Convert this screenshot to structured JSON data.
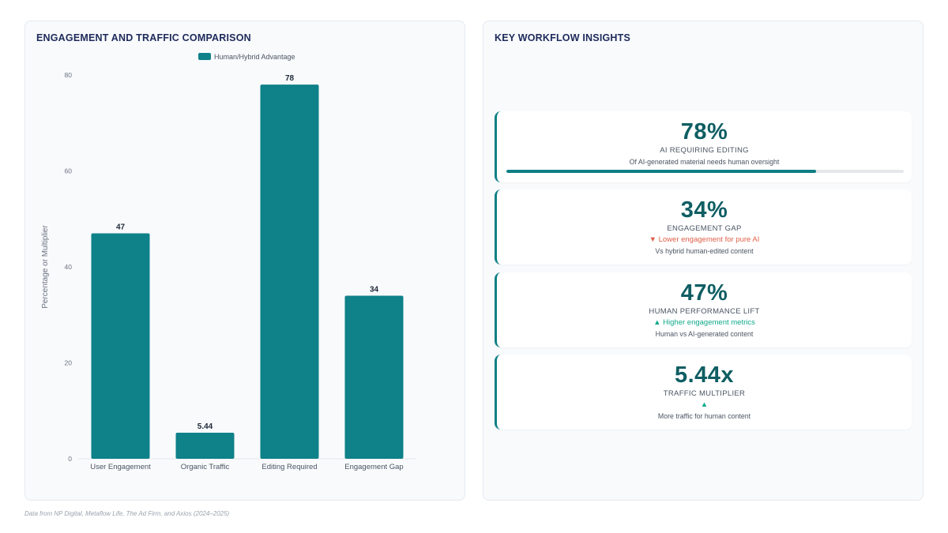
{
  "left_panel": {
    "title": "ENGAGEMENT AND TRAFFIC COMPARISON"
  },
  "right_panel": {
    "title": "KEY WORKFLOW INSIGHTS"
  },
  "chart_data": {
    "type": "bar",
    "title": "",
    "categories": [
      "User Engagement",
      "Organic Traffic",
      "Editing Required",
      "Engagement Gap"
    ],
    "series": [
      {
        "name": "Human/Hybrid Advantage",
        "values": [
          47,
          5.44,
          78,
          34
        ],
        "color": "#0e8189"
      }
    ],
    "data_labels": [
      "47",
      "5.44",
      "78",
      "34"
    ],
    "xlabel": "",
    "ylabel": "Percentage or Multiplier",
    "ylim": [
      0,
      80
    ],
    "yticks": [
      0,
      20,
      40,
      60,
      80
    ],
    "grid": false,
    "legend": "top-center"
  },
  "insights": [
    {
      "value": "78%",
      "label": "AI REQUIRING EDITING",
      "desc": "Of AI-generated material needs human oversight",
      "progress": 0.78
    },
    {
      "value": "34%",
      "label": "ENGAGEMENT GAP",
      "delta": "▼ Lower engagement for pure AI",
      "delta_dir": "down",
      "desc": "Vs hybrid human-edited content"
    },
    {
      "value": "47%",
      "label": "HUMAN PERFORMANCE LIFT",
      "delta": "▲ Higher engagement metrics",
      "delta_dir": "up",
      "desc": "Human vs AI-generated content"
    },
    {
      "value": "5.44x",
      "label": "TRAFFIC MULTIPLIER",
      "delta": "▲",
      "delta_dir": "up",
      "desc": "More traffic for human content"
    }
  ],
  "colors": {
    "accent": "#0e7f85",
    "value_text": "#0f5e63",
    "down": "#e0604a",
    "up": "#10a98a"
  },
  "footnote": "Data from NP Digital, Metaflow Life, The Ad Firm, and Axios (2024–2025)"
}
